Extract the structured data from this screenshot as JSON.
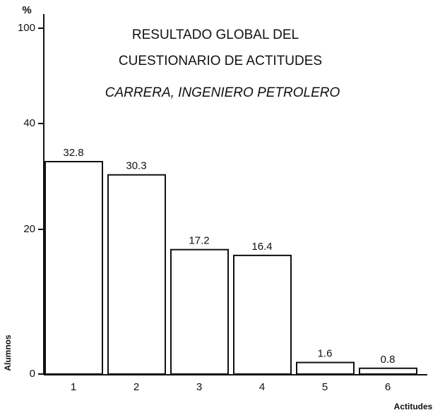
{
  "chart_data": {
    "type": "bar",
    "title": [
      "RESULTADO GLOBAL DEL",
      "CUESTIONARIO DE ACTITUDES"
    ],
    "subtitle": "CARRERA, INGENIERO PETROLERO",
    "y_unit": "%",
    "ylabel": "Alumnos",
    "xlabel": "Actitudes",
    "categories": [
      "1",
      "2",
      "3",
      "4",
      "5",
      "6"
    ],
    "values": [
      32.8,
      30.3,
      17.2,
      16.4,
      1.6,
      0.8
    ],
    "color": "#ffffff",
    "ylim": [
      0,
      100
    ],
    "yticks": [
      0,
      20,
      40,
      100
    ]
  }
}
